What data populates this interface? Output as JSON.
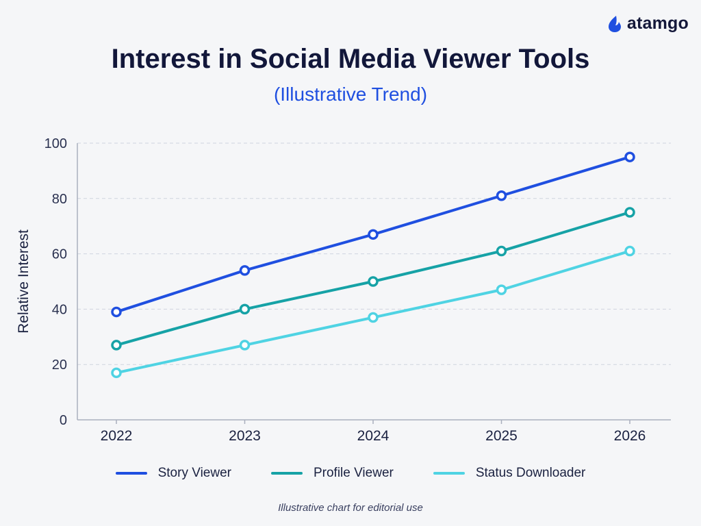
{
  "brand": {
    "name": "atamgo",
    "icon": "flame-icon",
    "color": "#1f4fe0"
  },
  "chart_data": {
    "type": "line",
    "title": "Interest in Social Media Viewer Tools",
    "subtitle": "(Illustrative Trend)",
    "xlabel": "",
    "ylabel": "Relative Interest",
    "x": [
      "2022",
      "2023",
      "2024",
      "2025",
      "2026"
    ],
    "ylim": [
      0,
      100
    ],
    "yticks": [
      0,
      20,
      40,
      60,
      80,
      100
    ],
    "grid": true,
    "legend_position": "bottom",
    "series": [
      {
        "name": "Story Viewer",
        "values": [
          39,
          54,
          67,
          81,
          95
        ],
        "color": "#1f4fe0"
      },
      {
        "name": "Profile Viewer",
        "values": [
          27,
          40,
          50,
          61,
          75
        ],
        "color": "#16a2a6"
      },
      {
        "name": "Status Downloader",
        "values": [
          17,
          27,
          37,
          47,
          61
        ],
        "color": "#4fd3e3"
      }
    ]
  },
  "footnote": "Illustrative chart for editorial use"
}
